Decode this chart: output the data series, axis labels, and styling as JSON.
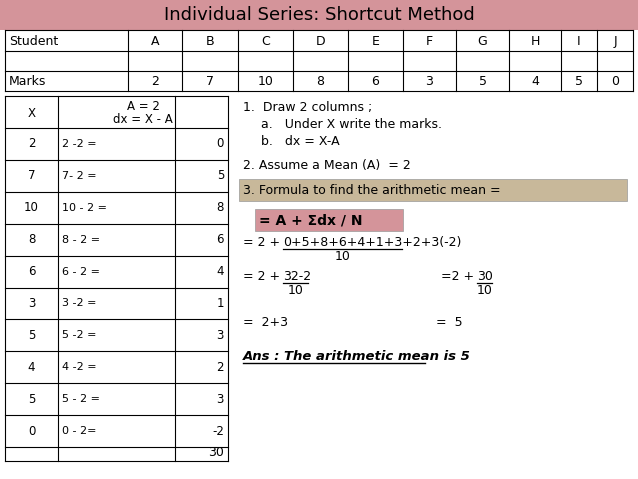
{
  "title": "Individual Series: Shortcut Method",
  "title_bg": "#d4949a",
  "students": [
    "Student",
    "A",
    "B",
    "C",
    "D",
    "E",
    "F",
    "G",
    "H",
    "I",
    "J"
  ],
  "marks": [
    "Marks",
    "2",
    "7",
    "10",
    "8",
    "6",
    "3",
    "5",
    "4",
    "5",
    "0"
  ],
  "x_col": [
    "2",
    "7",
    "10",
    "8",
    "6",
    "3",
    "5",
    "4",
    "5",
    "0"
  ],
  "dx_label": "dx = X - A",
  "a_label": "A = 2",
  "dx_calc": [
    "2 -2 =",
    "7- 2 =",
    "10 - 2 =",
    "8 - 2 =",
    "6 - 2 =",
    "3 -2 =",
    "5 -2 =",
    "4 -2 =",
    "5 - 2 =",
    "0 - 2="
  ],
  "dx_result": [
    "0",
    "5",
    "8",
    "6",
    "4",
    "1",
    "3",
    "2",
    "3",
    "-2"
  ],
  "dx_total": "30",
  "step1": "1.  Draw 2 columns ;",
  "step1a": "a.   Under X write the marks.",
  "step1b": "b.   dx = X-A",
  "step2": "2. Assume a Mean (A)  = 2",
  "step3_bg": "#c8b89a",
  "step3": "3. Formula to find the arithmetic mean =",
  "formula_bg": "#d4949a",
  "formula": "= A + Σdx / N",
  "calc1_pre": "= 2 + ",
  "calc1_num": "0+5+8+6+4+1+3+2+3(-2)",
  "calc1_denom": "10",
  "calc2a_pre": "= 2 + ",
  "calc2a_num": "32-2",
  "calc2a_denom": "10",
  "calc2b_pre": "=2 + ",
  "calc2b_num": "30",
  "calc2b_denom": "10",
  "calc3a": "=  2+3",
  "calc3b": "=  5",
  "ans": "Ans : The arithmetic mean is 5",
  "bg_color": "#ffffff",
  "text_color": "#000000"
}
